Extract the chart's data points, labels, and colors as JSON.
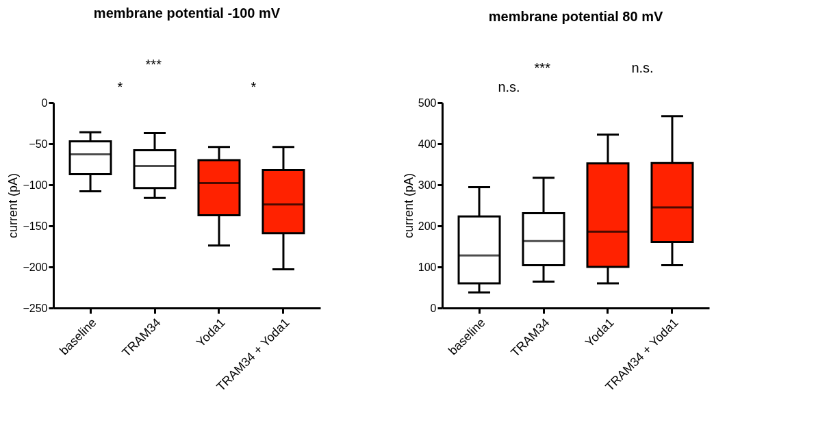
{
  "chart_data": [
    {
      "type": "box",
      "title": "membrane potential -100 mV",
      "ylabel": "current (pA)",
      "categories": [
        "baseline",
        "TRAM34",
        "Yoda1",
        "TRAM34 + Yoda1"
      ],
      "colors": [
        "#ffffff",
        "#ffffff",
        "#ff2200",
        "#ff2200"
      ],
      "boxes": [
        {
          "low": -108,
          "q1": -87,
          "median": -63,
          "q3": -47,
          "high": -36
        },
        {
          "low": -116,
          "q1": -104,
          "median": -77,
          "q3": -58,
          "high": -37
        },
        {
          "low": -174,
          "q1": -137,
          "median": -98,
          "q3": -70,
          "high": -54
        },
        {
          "low": -203,
          "q1": -159,
          "median": -124,
          "q3": -82,
          "high": -54
        }
      ],
      "ylim": [
        -250,
        0
      ],
      "yticks": [
        -250,
        -200,
        -150,
        -100,
        -50,
        0
      ],
      "annotations": [
        "***",
        "*",
        "*"
      ]
    },
    {
      "type": "box",
      "title": "membrane potential 80 mV",
      "ylabel": "current (pA)",
      "categories": [
        "baseline",
        "TRAM34",
        "Yoda1",
        "TRAM34 + Yoda1"
      ],
      "colors": [
        "#ffffff",
        "#ffffff",
        "#ff2200",
        "#ff2200"
      ],
      "boxes": [
        {
          "low": 38,
          "q1": 60,
          "median": 128,
          "q3": 223,
          "high": 294
        },
        {
          "low": 64,
          "q1": 104,
          "median": 163,
          "q3": 231,
          "high": 317
        },
        {
          "low": 60,
          "q1": 100,
          "median": 186,
          "q3": 352,
          "high": 422
        },
        {
          "low": 104,
          "q1": 161,
          "median": 245,
          "q3": 353,
          "high": 467
        }
      ],
      "ylim": [
        0,
        500
      ],
      "yticks": [
        0,
        100,
        200,
        300,
        400,
        500
      ],
      "annotations": [
        "***",
        "n.s.",
        "n.s."
      ]
    }
  ]
}
